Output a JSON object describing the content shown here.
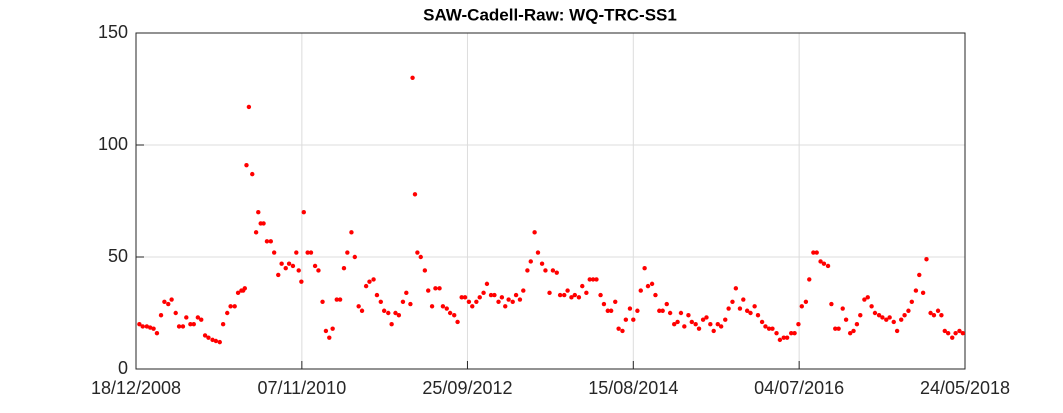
{
  "chart_data": {
    "type": "scatter",
    "title": "SAW-Cadell-Raw: WQ-TRC-SS1",
    "color": "#ff0000",
    "grid": true,
    "xlim": [
      "2008-12-18",
      "2018-05-24"
    ],
    "xticks": [
      {
        "value": "2008-12-18",
        "label": "18/12/2008"
      },
      {
        "value": "2010-11-07",
        "label": "07/11/2010"
      },
      {
        "value": "2012-09-25",
        "label": "25/09/2012"
      },
      {
        "value": "2014-08-15",
        "label": "15/08/2014"
      },
      {
        "value": "2016-07-04",
        "label": "04/07/2016"
      },
      {
        "value": "2018-05-24",
        "label": "24/05/2018"
      }
    ],
    "ylim": [
      0,
      150
    ],
    "yticks": [
      0,
      50,
      100,
      150
    ],
    "x": [
      "2009-01-01",
      "2009-01-15",
      "2009-02-01",
      "2009-02-15",
      "2009-03-01",
      "2009-03-15",
      "2009-04-01",
      "2009-04-15",
      "2009-05-01",
      "2009-05-15",
      "2009-06-01",
      "2009-06-15",
      "2009-07-01",
      "2009-07-15",
      "2009-08-01",
      "2009-08-15",
      "2009-09-01",
      "2009-09-15",
      "2009-10-01",
      "2009-10-15",
      "2009-11-01",
      "2009-11-15",
      "2009-12-01",
      "2009-12-15",
      "2010-01-01",
      "2010-01-15",
      "2010-02-01",
      "2010-02-15",
      "2010-03-01",
      "2010-03-08",
      "2010-03-15",
      "2010-03-22",
      "2010-04-01",
      "2010-04-15",
      "2010-05-01",
      "2010-05-10",
      "2010-05-20",
      "2010-06-01",
      "2010-06-15",
      "2010-07-01",
      "2010-07-15",
      "2010-08-01",
      "2010-08-15",
      "2010-09-01",
      "2010-09-15",
      "2010-10-01",
      "2010-10-15",
      "2010-10-25",
      "2010-11-05",
      "2010-11-15",
      "2010-12-01",
      "2010-12-15",
      "2011-01-01",
      "2011-01-15",
      "2011-02-01",
      "2011-02-15",
      "2011-03-01",
      "2011-03-15",
      "2011-04-01",
      "2011-04-15",
      "2011-05-01",
      "2011-05-15",
      "2011-06-01",
      "2011-06-15",
      "2011-07-01",
      "2011-07-15",
      "2011-08-01",
      "2011-08-15",
      "2011-09-01",
      "2011-09-15",
      "2011-10-01",
      "2011-10-15",
      "2011-11-01",
      "2011-11-15",
      "2011-12-01",
      "2011-12-15",
      "2012-01-01",
      "2012-01-15",
      "2012-02-01",
      "2012-02-10",
      "2012-02-20",
      "2012-03-01",
      "2012-03-15",
      "2012-04-01",
      "2012-04-15",
      "2012-05-01",
      "2012-05-15",
      "2012-06-01",
      "2012-06-15",
      "2012-07-01",
      "2012-07-15",
      "2012-08-01",
      "2012-08-15",
      "2012-09-01",
      "2012-09-15",
      "2012-10-01",
      "2012-10-15",
      "2012-11-01",
      "2012-11-15",
      "2012-12-01",
      "2012-12-15",
      "2013-01-01",
      "2013-01-15",
      "2013-02-01",
      "2013-02-15",
      "2013-03-01",
      "2013-03-15",
      "2013-04-01",
      "2013-04-15",
      "2013-05-01",
      "2013-05-15",
      "2013-06-01",
      "2013-06-15",
      "2013-07-01",
      "2013-07-15",
      "2013-08-01",
      "2013-08-15",
      "2013-09-01",
      "2013-09-15",
      "2013-10-01",
      "2013-10-15",
      "2013-11-01",
      "2013-11-15",
      "2013-12-01",
      "2013-12-15",
      "2014-01-01",
      "2014-01-15",
      "2014-02-01",
      "2014-02-15",
      "2014-03-01",
      "2014-03-15",
      "2014-04-01",
      "2014-04-15",
      "2014-05-01",
      "2014-05-15",
      "2014-06-01",
      "2014-06-15",
      "2014-07-01",
      "2014-07-15",
      "2014-08-01",
      "2014-08-15",
      "2014-09-01",
      "2014-09-15",
      "2014-10-01",
      "2014-10-15",
      "2014-11-01",
      "2014-11-15",
      "2014-12-01",
      "2014-12-15",
      "2015-01-01",
      "2015-01-15",
      "2015-02-01",
      "2015-02-15",
      "2015-03-01",
      "2015-03-15",
      "2015-04-01",
      "2015-04-15",
      "2015-05-01",
      "2015-05-15",
      "2015-06-01",
      "2015-06-15",
      "2015-07-01",
      "2015-07-15",
      "2015-08-01",
      "2015-08-15",
      "2015-09-01",
      "2015-09-15",
      "2015-10-01",
      "2015-10-15",
      "2015-11-01",
      "2015-11-15",
      "2015-12-01",
      "2015-12-15",
      "2016-01-01",
      "2016-01-15",
      "2016-02-01",
      "2016-02-15",
      "2016-03-01",
      "2016-03-15",
      "2016-04-01",
      "2016-04-15",
      "2016-05-01",
      "2016-05-15",
      "2016-06-01",
      "2016-06-15",
      "2016-07-01",
      "2016-07-15",
      "2016-08-01",
      "2016-08-15",
      "2016-09-01",
      "2016-09-15",
      "2016-10-01",
      "2016-10-15",
      "2016-11-01",
      "2016-11-15",
      "2016-12-01",
      "2016-12-15",
      "2017-01-01",
      "2017-01-15",
      "2017-02-01",
      "2017-02-15",
      "2017-03-01",
      "2017-03-15",
      "2017-04-01",
      "2017-04-15",
      "2017-05-01",
      "2017-05-15",
      "2017-06-01",
      "2017-06-15",
      "2017-07-01",
      "2017-07-15",
      "2017-08-01",
      "2017-08-15",
      "2017-09-01",
      "2017-09-15",
      "2017-10-01",
      "2017-10-15",
      "2017-11-01",
      "2017-11-15",
      "2017-12-01",
      "2017-12-15",
      "2018-01-01",
      "2018-01-15",
      "2018-02-01",
      "2018-02-15",
      "2018-03-01",
      "2018-03-15",
      "2018-04-01",
      "2018-04-15",
      "2018-05-01",
      "2018-05-15"
    ],
    "values": [
      20,
      19,
      19,
      18.5,
      18,
      16,
      24,
      30,
      29,
      31,
      25,
      19,
      19,
      23,
      20,
      20,
      23,
      22,
      15,
      14,
      13,
      12.5,
      12,
      20,
      25,
      28,
      28,
      34,
      35,
      35,
      36,
      91,
      117,
      87,
      61,
      70,
      65,
      65,
      57,
      57,
      52,
      42,
      47,
      45,
      47,
      46,
      52,
      44,
      39,
      70,
      52,
      52,
      46,
      44,
      30,
      17,
      14,
      18,
      31,
      31,
      45,
      52,
      61,
      50,
      28,
      26,
      37,
      39,
      40,
      33,
      30,
      26,
      25,
      20,
      25,
      24,
      30,
      34,
      29,
      130,
      78,
      52,
      50,
      44,
      35,
      28,
      36,
      36,
      28,
      27,
      25,
      24,
      21,
      32,
      32,
      30,
      28,
      30,
      32,
      34,
      38,
      33,
      33,
      30,
      32,
      28,
      31,
      30,
      33,
      31,
      35,
      44,
      48,
      61,
      52,
      47,
      44,
      34,
      44,
      43,
      33,
      33,
      35,
      32,
      33,
      32,
      37,
      34,
      40,
      40,
      40,
      33,
      29,
      26,
      26,
      30,
      18,
      17,
      22,
      27,
      22,
      26,
      35,
      45,
      37,
      38,
      33,
      26,
      26,
      29,
      25,
      20,
      21,
      25,
      19,
      24,
      21,
      20,
      18,
      22,
      23,
      20,
      17,
      20,
      19,
      22,
      27,
      30,
      36,
      27,
      31,
      26,
      25,
      28,
      24,
      21,
      19,
      18,
      18,
      16,
      13,
      14,
      14,
      16,
      16,
      20,
      28,
      30,
      40,
      52,
      52,
      48,
      47,
      46,
      29,
      18,
      18,
      27,
      22,
      16,
      17,
      20,
      24,
      31,
      32,
      28,
      25,
      24,
      23,
      22,
      23,
      21,
      17,
      22,
      24,
      26,
      30,
      35,
      42,
      34,
      49,
      25,
      24,
      26,
      24,
      17,
      16,
      14,
      16,
      17,
      16
    ]
  }
}
